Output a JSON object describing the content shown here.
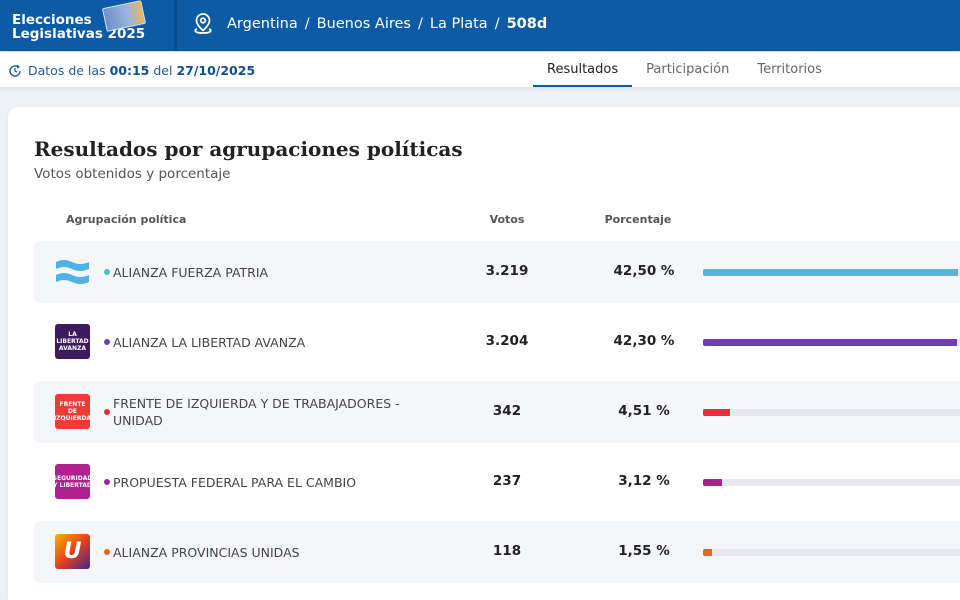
{
  "header": {
    "brand_line1": "Elecciones",
    "brand_line2": "Legislativas 2025",
    "breadcrumb": [
      "Argentina",
      "Buenos Aires",
      "La Plata",
      "508d"
    ]
  },
  "subheader": {
    "prefix": "Datos de las",
    "time": "00:15",
    "mid": "del",
    "date": "27/10/2025",
    "tabs": [
      "Resultados",
      "Participación",
      "Territorios"
    ],
    "active_tab": "Resultados"
  },
  "card": {
    "title": "Resultados por agrupaciones políticas",
    "subtitle": "Votos obtenidos y porcentaje",
    "columns": [
      "Agrupación política",
      "Votos",
      "Porcentaje"
    ]
  },
  "rows": [
    {
      "name": "ALIANZA FUERZA PATRIA",
      "votes": "3.219",
      "percent": "42,50 %",
      "value": 42.5,
      "color": "#5bb1dc",
      "logo_text": ""
    },
    {
      "name": "ALIANZA LA LIBERTAD AVANZA",
      "votes": "3.204",
      "percent": "42,30 %",
      "value": 42.3,
      "color": "#6c3fb5",
      "logo_text": "LA LIBERTAD AVANZA"
    },
    {
      "name": "FRENTE DE IZQUIERDA Y DE TRABAJADORES - UNIDAD",
      "votes": "342",
      "percent": "4,51 %",
      "value": 4.51,
      "color": "#e0313a",
      "logo_text": "FRENTE DE IZQUIERDA"
    },
    {
      "name": "PROPUESTA FEDERAL PARA EL CAMBIO",
      "votes": "237",
      "percent": "3,12 %",
      "value": 3.12,
      "color": "#a3238e",
      "logo_text": "SEGURIDAD Y LIBERTAD"
    },
    {
      "name": "ALIANZA PROVINCIAS UNIDAS",
      "votes": "118",
      "percent": "1,55 %",
      "value": 1.55,
      "color": "#f06418",
      "logo_text": "U"
    }
  ]
}
